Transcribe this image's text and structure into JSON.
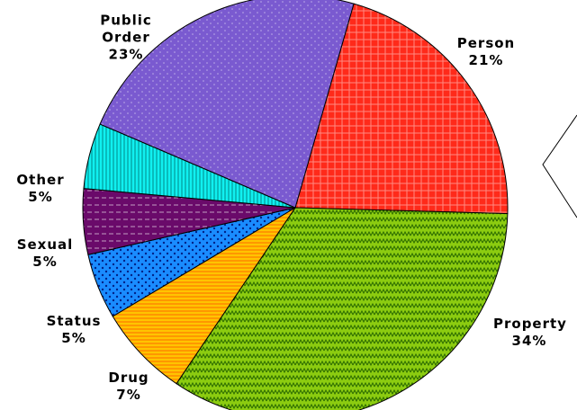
{
  "chart_data": {
    "type": "pie",
    "categories": [
      "Person",
      "Property",
      "Drug",
      "Status",
      "Sexual",
      "Other",
      "Public Order"
    ],
    "values": [
      21,
      34,
      7,
      5,
      5,
      5,
      23
    ],
    "value_labels": [
      "21%",
      "34%",
      "7%",
      "5%",
      "5%",
      "5%",
      "23%"
    ],
    "colors": [
      "#ff2a1a",
      "#8ccc10",
      "#ffc400",
      "#1a8cff",
      "#6a0a6a",
      "#10f0f0",
      "#7a5ad0"
    ]
  }
}
